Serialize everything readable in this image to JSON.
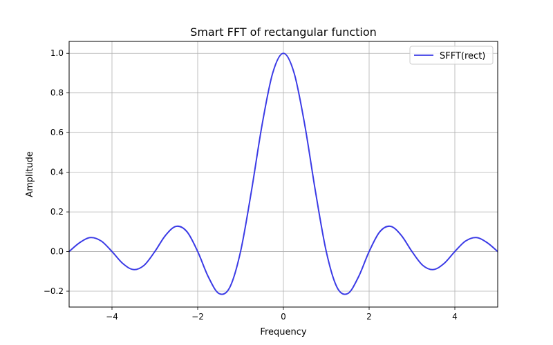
{
  "chart_data": {
    "type": "line",
    "title": "Smart FFT of rectangular function",
    "xlabel": "Frequency",
    "ylabel": "Amplitude",
    "xlim": [
      -5,
      5
    ],
    "ylim": [
      -0.28,
      1.06
    ],
    "xticks": [
      -4,
      -2,
      0,
      2,
      4
    ],
    "xtick_labels": [
      "−4",
      "−2",
      "0",
      "2",
      "4"
    ],
    "yticks": [
      -0.2,
      0.0,
      0.2,
      0.4,
      0.6,
      0.8,
      1.0
    ],
    "ytick_labels": [
      "−0.2",
      "0.0",
      "0.2",
      "0.4",
      "0.6",
      "0.8",
      "1.0"
    ],
    "grid": true,
    "legend_position": "top-right",
    "series": [
      {
        "name": "SFFT(rect)",
        "color": "#3b3be6",
        "x": [
          -5.0,
          -4.75,
          -4.5,
          -4.25,
          -4.0,
          -3.75,
          -3.5,
          -3.25,
          -3.0,
          -2.75,
          -2.5,
          -2.25,
          -2.0,
          -1.75,
          -1.5,
          -1.25,
          -1.0,
          -0.75,
          -0.5,
          -0.25,
          0.0,
          0.25,
          0.5,
          0.75,
          1.0,
          1.25,
          1.5,
          1.75,
          2.0,
          2.25,
          2.5,
          2.75,
          3.0,
          3.25,
          3.5,
          3.75,
          4.0,
          4.25,
          4.5,
          4.75,
          5.0
        ],
        "y": [
          0.0,
          0.0455,
          0.0707,
          0.053,
          0.0,
          -0.06,
          -0.0909,
          -0.0693,
          0.0,
          0.0818,
          0.1273,
          0.1,
          0.0,
          -0.1286,
          -0.2122,
          -0.18,
          0.0,
          0.3001,
          0.6366,
          0.9003,
          1.0,
          0.9003,
          0.6366,
          0.3001,
          0.0,
          -0.18,
          -0.2122,
          -0.1286,
          0.0,
          0.1,
          0.1273,
          0.0818,
          0.0,
          -0.0693,
          -0.0909,
          -0.06,
          0.0,
          0.053,
          0.0707,
          0.0455,
          0.0
        ]
      }
    ]
  }
}
